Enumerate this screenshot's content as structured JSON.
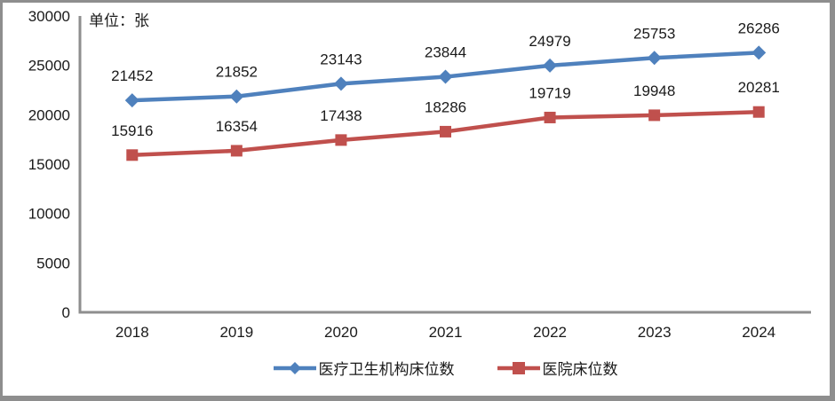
{
  "chart_data": {
    "type": "line",
    "unit_label": "单位：张",
    "categories": [
      "2018",
      "2019",
      "2020",
      "2021",
      "2022",
      "2023",
      "2024"
    ],
    "series": [
      {
        "name": "医疗卫生机构床位数",
        "color": "#4F81BD",
        "marker": "diamond",
        "values": [
          21452,
          21852,
          23143,
          23844,
          24979,
          25753,
          26286
        ]
      },
      {
        "name": "医院床位数",
        "color": "#C0504D",
        "marker": "square",
        "values": [
          15916,
          16354,
          17438,
          18286,
          19719,
          19948,
          20281
        ]
      }
    ],
    "ylim": [
      0,
      30000
    ],
    "ytick_interval": 5000,
    "yticks": [
      "0",
      "5000",
      "10000",
      "15000",
      "20000",
      "25000",
      "30000"
    ],
    "grid": false,
    "data_labels": true,
    "legend_position": "bottom",
    "axis_color": "#8e8e8e",
    "frame_border_color": "#8e8e8e",
    "label_color": "#1a1a1a"
  }
}
